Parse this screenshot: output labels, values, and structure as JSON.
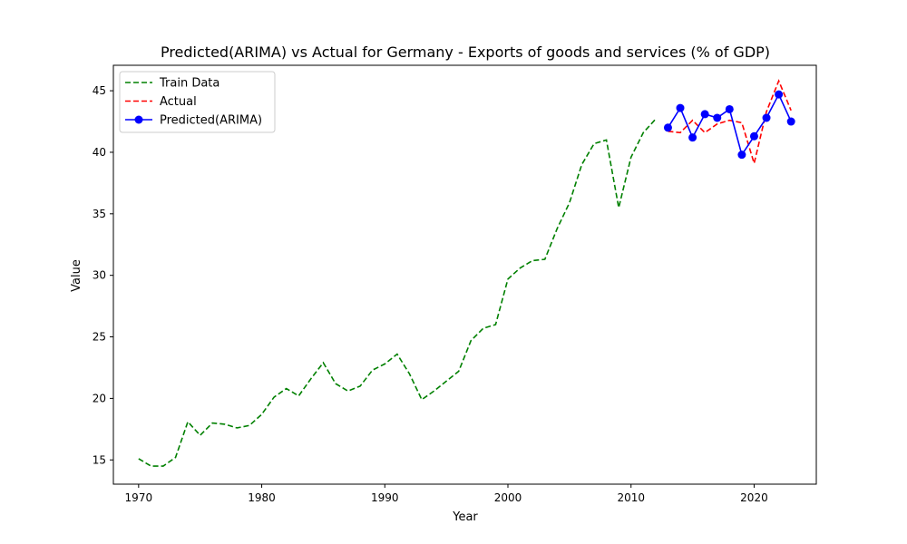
{
  "chart_data": {
    "type": "line",
    "title": "Predicted(ARIMA) vs Actual for Germany - Exports of goods and services (% of GDP)",
    "xlabel": "Year",
    "ylabel": "Value",
    "xlim": [
      1967.95,
      2025.05
    ],
    "ylim": [
      13.03,
      47.07
    ],
    "xticks": [
      1970,
      1980,
      1990,
      2000,
      2010,
      2020
    ],
    "yticks": [
      15,
      20,
      25,
      30,
      35,
      40,
      45
    ],
    "legend_position": "top-left",
    "series": [
      {
        "name": "Train Data",
        "color": "#008000",
        "style": "dashed",
        "x": [
          1970,
          1971,
          1972,
          1973,
          1974,
          1975,
          1976,
          1977,
          1978,
          1979,
          1980,
          1981,
          1982,
          1983,
          1984,
          1985,
          1986,
          1987,
          1988,
          1989,
          1990,
          1991,
          1992,
          1993,
          1994,
          1995,
          1996,
          1997,
          1998,
          1999,
          2000,
          2001,
          2002,
          2003,
          2004,
          2005,
          2006,
          2007,
          2008,
          2009,
          2010,
          2011,
          2012
        ],
        "values": [
          15.1,
          14.5,
          14.5,
          15.2,
          18.1,
          17.0,
          18.0,
          17.9,
          17.6,
          17.8,
          18.7,
          20.1,
          20.8,
          20.2,
          21.6,
          22.9,
          21.2,
          20.6,
          21.0,
          22.3,
          22.8,
          23.6,
          22.0,
          19.9,
          20.6,
          21.4,
          22.2,
          24.7,
          25.7,
          26.0,
          29.7,
          30.6,
          31.2,
          31.3,
          33.8,
          35.9,
          39.0,
          40.7,
          41.0,
          35.5,
          39.6,
          41.6,
          42.7
        ]
      },
      {
        "name": "Actual",
        "color": "#ff0000",
        "style": "dashed",
        "x": [
          2013,
          2014,
          2015,
          2016,
          2017,
          2018,
          2019,
          2020,
          2021,
          2022,
          2023
        ],
        "values": [
          41.7,
          41.6,
          42.6,
          41.6,
          42.3,
          42.6,
          42.4,
          39.1,
          43.3,
          45.8,
          43.4
        ]
      },
      {
        "name": "Predicted(ARIMA)",
        "color": "#0000ff",
        "style": "solid-marker",
        "x": [
          2013,
          2014,
          2015,
          2016,
          2017,
          2018,
          2019,
          2020,
          2021,
          2022,
          2023
        ],
        "values": [
          42.0,
          43.6,
          41.2,
          43.1,
          42.8,
          43.5,
          39.8,
          41.3,
          42.8,
          44.7,
          42.5
        ]
      }
    ]
  }
}
